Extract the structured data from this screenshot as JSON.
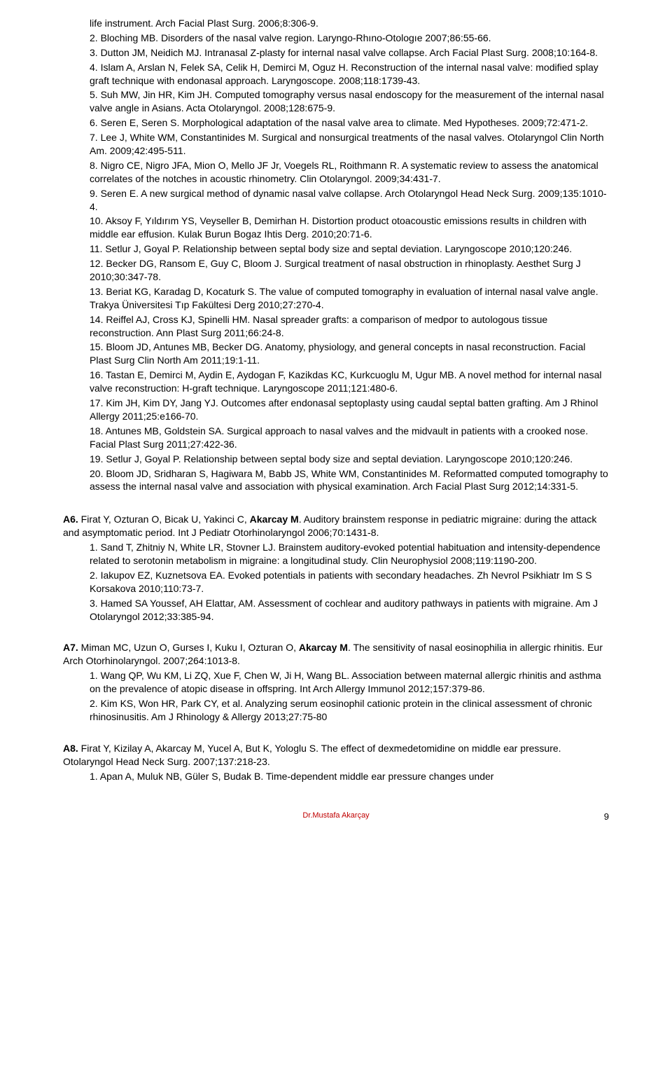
{
  "topRefs": [
    "life instrument. Arch Facial Plast Surg. 2006;8:306-9.",
    "2. Bloching MB. Disorders of the nasal valve region. Laryngo-Rhıno-Otologıe 2007;86:55-66.",
    "3. Dutton JM, Neidich MJ. Intranasal Z-plasty for internal nasal valve collapse. Arch Facial Plast Surg. 2008;10:164-8.",
    "4. Islam A, Arslan N, Felek SA, Celik H, Demirci M, Oguz H. Reconstruction of the internal nasal valve: modified splay graft technique with endonasal approach. Laryngoscope. 2008;118:1739-43.",
    "5. Suh MW, Jin HR, Kim JH. Computed tomography versus nasal endoscopy for the measurement of the internal nasal valve angle in Asians. Acta Otolaryngol. 2008;128:675-9.",
    "6. Seren E, Seren S. Morphological adaptation of the nasal valve area to climate. Med Hypotheses. 2009;72:471-2.",
    "7. Lee J, White WM, Constantinides M. Surgical and nonsurgical treatments of the nasal valves. Otolaryngol Clin North Am. 2009;42:495-511.",
    "8. Nigro CE, Nigro JFA, Mion O, Mello JF Jr, Voegels RL, Roithmann R. A systematic review to assess the anatomical correlates of the notches in acoustic rhinometry. Clin Otolaryngol. 2009;34:431-7.",
    "9. Seren E. A new surgical method of dynamic nasal valve collapse. Arch Otolaryngol Head Neck Surg. 2009;135:1010-4.",
    "10. Aksoy F, Yıldırım YS, Veyseller B, Demirhan H. Distortion product otoacoustic emissions results in children with middle ear effusion. Kulak Burun Bogaz Ihtis Derg. 2010;20:71-6.",
    "11. Setlur J, Goyal P. Relationship between septal body size and septal deviation. Laryngoscope 2010;120:246.",
    "12. Becker DG, Ransom E, Guy C, Bloom J. Surgical treatment of nasal obstruction in rhinoplasty. Aesthet Surg J 2010;30:347-78.",
    "13. Beriat KG, Karadag D, Kocaturk S. The value of computed tomography in evaluation of internal nasal valve angle. Trakya Üniversitesi Tıp Fakültesi Derg 2010;27:270-4.",
    "14. Reiffel AJ, Cross KJ, Spinelli HM. Nasal spreader grafts: a comparison of medpor to autologous tissue reconstruction. Ann Plast Surg 2011;66:24-8.",
    "15. Bloom JD, Antunes MB, Becker DG. Anatomy, physiology, and general concepts in nasal reconstruction. Facial Plast Surg Clin North Am 2011;19:1-11.",
    "16. Tastan E, Demirci M, Aydin E, Aydogan F, Kazikdas KC, Kurkcuoglu M, Ugur MB. A novel method for internal nasal valve reconstruction: H-graft technique. Laryngoscope 2011;121:480-6.",
    "17. Kim JH, Kim DY, Jang YJ. Outcomes after endonasal septoplasty using caudal septal batten grafting. Am J Rhinol Allergy 2011;25:e166-70.",
    "18. Antunes MB, Goldstein SA. Surgical approach to nasal valves and the midvault in patients with a crooked nose. Facial Plast Surg 2011;27:422-36.",
    "19. Setlur J, Goyal P. Relationship between septal body size and septal deviation. Laryngoscope 2010;120:246.",
    "20. Bloom JD, Sridharan S, Hagiwara M, Babb JS, White WM, Constantinides M. Reformatted computed tomography to assess the internal nasal valve and association with physical examination. Arch Facial Plast Surg 2012;14:331-5."
  ],
  "a6": {
    "label": "A6.",
    "authors_pre": " Firat Y, Ozturan O, Bicak U, Yakinci C, ",
    "authors_bold": "Akarcay M",
    "title_rest": ". Auditory brainstem response in pediatric migraine: during the attack and asymptomatic period. Int J Pediatr Otorhinolaryngol 2006;70:1431-8.",
    "subs": [
      "1. Sand T, Zhitniy N, White LR, Stovner LJ. Brainstem auditory-evoked potential habituation and intensity-dependence related to serotonin metabolism in migraine: a longitudinal study. Clin Neurophysiol 2008;119:1190-200.",
      "2. Iakupov EZ, Kuznetsova EA. Evoked potentials in patients with secondary headaches. Zh Nevrol Psikhiatr Im S S Korsakova 2010;110:73-7.",
      "3. Hamed SA Youssef, AH Elattar, AM. Assessment of cochlear and auditory pathways in patients with migraine. Am J Otolaryngol 2012;33:385-94."
    ]
  },
  "a7": {
    "label": "A7.",
    "authors_pre": " Miman MC, Uzun O, Gurses I, Kuku I, Ozturan O, ",
    "authors_bold": "Akarcay M",
    "title_rest": ". The sensitivity of nasal eosinophilia in allergic rhinitis. Eur Arch Otorhinolaryngol. 2007;264:1013-8.",
    "subs": [
      "1. Wang QP, Wu KM, Li ZQ, Xue F, Chen W, Ji H, Wang BL. Association between maternal allergic rhinitis and asthma on the prevalence of atopic disease in offspring. Int Arch Allergy Immunol 2012;157:379-86.",
      "2. Kim KS, Won HR, Park CY, et al. Analyzing serum eosinophil cationic protein in the clinical assessment of chronic rhinosinusitis. Am J Rhinology & Allergy 2013;27:75-80"
    ]
  },
  "a8": {
    "label": "A8.",
    "authors_pre": " Firat Y, Kizilay A, Akarcay M, Yucel A, But K, Yologlu S. The effect of dexmedetomidine on middle ear pressure. Otolaryngol Head Neck Surg. 2007;137:218-23.",
    "subs": [
      "1. Apan A, Muluk NB, Güler S, Budak B. Time-dependent middle ear pressure changes under"
    ]
  },
  "footer": {
    "center": "Dr.Mustafa Akarçay",
    "pageNum": "9"
  }
}
